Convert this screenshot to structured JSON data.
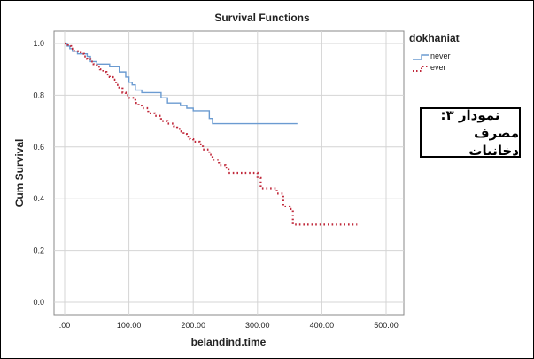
{
  "chart_data": {
    "type": "line",
    "title": "Survival Functions",
    "xlabel": "belandind.time",
    "ylabel": "Cum Survival",
    "xlim": [
      0,
      500
    ],
    "ylim": [
      0,
      1.0
    ],
    "x_ticks": [
      ".00",
      "100.00",
      "200.00",
      "300.00",
      "400.00",
      "500.00"
    ],
    "y_ticks": [
      "0.0",
      "0.2",
      "0.4",
      "0.6",
      "0.8",
      "1.0"
    ],
    "grid": true,
    "legend": {
      "title": "dokhaniat",
      "placement": "top-right"
    },
    "series": [
      {
        "name": "never",
        "color": "#6b9bd1",
        "style": "solid",
        "points": [
          [
            0,
            1.0
          ],
          [
            4,
            0.99
          ],
          [
            8,
            0.98
          ],
          [
            12,
            0.97
          ],
          [
            20,
            0.96
          ],
          [
            35,
            0.95
          ],
          [
            40,
            0.93
          ],
          [
            50,
            0.92
          ],
          [
            70,
            0.91
          ],
          [
            85,
            0.89
          ],
          [
            95,
            0.87
          ],
          [
            100,
            0.85
          ],
          [
            105,
            0.84
          ],
          [
            110,
            0.82
          ],
          [
            120,
            0.81
          ],
          [
            150,
            0.79
          ],
          [
            160,
            0.77
          ],
          [
            180,
            0.76
          ],
          [
            190,
            0.75
          ],
          [
            200,
            0.74
          ],
          [
            225,
            0.71
          ],
          [
            230,
            0.69
          ],
          [
            362,
            0.69
          ]
        ]
      },
      {
        "name": "ever",
        "color": "#c0283a",
        "style": "dotted",
        "points": [
          [
            0,
            1.0
          ],
          [
            5,
            0.99
          ],
          [
            10,
            0.98
          ],
          [
            15,
            0.97
          ],
          [
            25,
            0.96
          ],
          [
            30,
            0.95
          ],
          [
            35,
            0.94
          ],
          [
            40,
            0.93
          ],
          [
            45,
            0.92
          ],
          [
            50,
            0.91
          ],
          [
            55,
            0.9
          ],
          [
            60,
            0.89
          ],
          [
            65,
            0.88
          ],
          [
            70,
            0.87
          ],
          [
            75,
            0.86
          ],
          [
            80,
            0.84
          ],
          [
            85,
            0.83
          ],
          [
            90,
            0.81
          ],
          [
            95,
            0.8
          ],
          [
            100,
            0.79
          ],
          [
            110,
            0.77
          ],
          [
            115,
            0.76
          ],
          [
            120,
            0.75
          ],
          [
            130,
            0.73
          ],
          [
            140,
            0.72
          ],
          [
            150,
            0.7
          ],
          [
            160,
            0.69
          ],
          [
            170,
            0.68
          ],
          [
            175,
            0.67
          ],
          [
            180,
            0.66
          ],
          [
            185,
            0.65
          ],
          [
            190,
            0.64
          ],
          [
            195,
            0.63
          ],
          [
            200,
            0.62
          ],
          [
            210,
            0.61
          ],
          [
            215,
            0.59
          ],
          [
            225,
            0.57
          ],
          [
            230,
            0.55
          ],
          [
            240,
            0.53
          ],
          [
            250,
            0.52
          ],
          [
            255,
            0.5
          ],
          [
            300,
            0.48
          ],
          [
            305,
            0.44
          ],
          [
            330,
            0.42
          ],
          [
            340,
            0.37
          ],
          [
            350,
            0.36
          ],
          [
            355,
            0.3
          ],
          [
            455,
            0.3
          ]
        ]
      }
    ]
  },
  "annotation": {
    "line1": "نمودار ۳:",
    "line2": "مصرف دخانیات"
  }
}
